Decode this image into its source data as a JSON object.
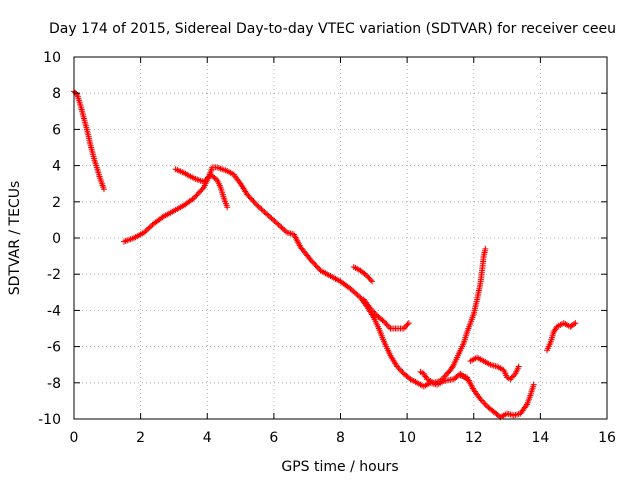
{
  "chart_data": {
    "type": "scatter",
    "title": "Day 174 of 2015, Sidereal Day-to-day VTEC variation (SDTVAR) for receiver ceeu",
    "xlabel": "GPS time / hours",
    "ylabel": "SDTVAR / TECUs",
    "xlim": [
      0,
      16
    ],
    "ylim": [
      -10,
      10
    ],
    "xticks": [
      0,
      2,
      4,
      6,
      8,
      10,
      12,
      14,
      16
    ],
    "yticks": [
      -10,
      -8,
      -6,
      -4,
      -2,
      0,
      2,
      4,
      6,
      8,
      10
    ],
    "grid": true,
    "marker": "plus",
    "series": [
      {
        "name": "SDTVAR",
        "color": "#ff0000",
        "segments": [
          [
            [
              0.0,
              8.1
            ],
            [
              0.1,
              7.9
            ],
            [
              0.2,
              7.3
            ],
            [
              0.3,
              6.6
            ],
            [
              0.4,
              5.9
            ],
            [
              0.5,
              5.1
            ],
            [
              0.6,
              4.4
            ],
            [
              0.7,
              3.8
            ],
            [
              0.8,
              3.2
            ],
            [
              0.9,
              2.7
            ]
          ],
          [
            [
              1.5,
              -0.2
            ],
            [
              1.8,
              0.0
            ],
            [
              2.1,
              0.3
            ],
            [
              2.4,
              0.8
            ],
            [
              2.7,
              1.2
            ],
            [
              3.0,
              1.5
            ],
            [
              3.3,
              1.8
            ],
            [
              3.6,
              2.2
            ],
            [
              3.9,
              2.8
            ],
            [
              4.05,
              3.4
            ],
            [
              4.15,
              3.9
            ],
            [
              4.3,
              3.9
            ],
            [
              4.45,
              3.8
            ],
            [
              4.6,
              3.7
            ],
            [
              4.8,
              3.5
            ],
            [
              5.0,
              3.0
            ],
            [
              5.2,
              2.4
            ],
            [
              5.5,
              1.8
            ],
            [
              5.8,
              1.3
            ],
            [
              6.1,
              0.8
            ],
            [
              6.4,
              0.3
            ],
            [
              6.6,
              0.2
            ],
            [
              6.8,
              -0.5
            ],
            [
              7.1,
              -1.2
            ],
            [
              7.4,
              -1.8
            ],
            [
              7.7,
              -2.1
            ],
            [
              8.0,
              -2.4
            ],
            [
              8.3,
              -2.8
            ],
            [
              8.6,
              -3.3
            ],
            [
              8.8,
              -3.8
            ],
            [
              9.0,
              -4.4
            ],
            [
              9.15,
              -5.0
            ],
            [
              9.3,
              -5.7
            ],
            [
              9.5,
              -6.5
            ],
            [
              9.7,
              -7.1
            ],
            [
              9.9,
              -7.5
            ],
            [
              10.1,
              -7.8
            ],
            [
              10.3,
              -8.0
            ],
            [
              10.5,
              -8.2
            ],
            [
              10.7,
              -8.0
            ],
            [
              10.9,
              -8.1
            ],
            [
              11.1,
              -7.9
            ],
            [
              11.4,
              -7.8
            ],
            [
              11.6,
              -7.5
            ],
            [
              11.8,
              -7.8
            ]
          ],
          [
            [
              3.05,
              3.8
            ],
            [
              3.3,
              3.6
            ],
            [
              3.6,
              3.3
            ],
            [
              3.9,
              3.1
            ],
            [
              4.1,
              3.5
            ],
            [
              4.3,
              3.2
            ],
            [
              4.4,
              2.8
            ],
            [
              4.5,
              2.2
            ],
            [
              4.6,
              1.7
            ]
          ],
          [
            [
              8.4,
              -1.6
            ],
            [
              8.6,
              -1.8
            ],
            [
              8.8,
              -2.1
            ],
            [
              8.95,
              -2.4
            ]
          ],
          [
            [
              8.7,
              -3.4
            ],
            [
              8.9,
              -3.9
            ],
            [
              9.1,
              -4.3
            ],
            [
              9.3,
              -4.6
            ],
            [
              9.5,
              -5.0
            ],
            [
              9.7,
              -5.0
            ],
            [
              9.9,
              -5.0
            ],
            [
              10.05,
              -4.7
            ]
          ],
          [
            [
              10.4,
              -7.4
            ],
            [
              10.5,
              -7.5
            ],
            [
              10.6,
              -7.8
            ],
            [
              10.8,
              -8.0
            ],
            [
              11.0,
              -7.9
            ],
            [
              11.2,
              -7.5
            ],
            [
              11.3,
              -7.3
            ],
            [
              11.4,
              -7.0
            ],
            [
              11.5,
              -6.6
            ],
            [
              11.6,
              -6.2
            ],
            [
              11.7,
              -5.8
            ],
            [
              11.8,
              -5.2
            ],
            [
              11.9,
              -4.7
            ],
            [
              12.0,
              -4.2
            ],
            [
              12.1,
              -3.4
            ],
            [
              12.2,
              -2.5
            ],
            [
              12.25,
              -1.8
            ],
            [
              12.3,
              -1.0
            ],
            [
              12.35,
              -0.6
            ]
          ],
          [
            [
              11.9,
              -6.8
            ],
            [
              12.1,
              -6.6
            ],
            [
              12.3,
              -6.8
            ],
            [
              12.5,
              -7.0
            ],
            [
              12.7,
              -7.1
            ],
            [
              12.9,
              -7.3
            ],
            [
              13.0,
              -7.7
            ],
            [
              13.1,
              -7.8
            ],
            [
              13.25,
              -7.5
            ],
            [
              13.35,
              -7.1
            ]
          ],
          [
            [
              11.6,
              -7.6
            ],
            [
              11.8,
              -7.7
            ],
            [
              12.0,
              -8.4
            ],
            [
              12.2,
              -8.9
            ],
            [
              12.4,
              -9.3
            ],
            [
              12.6,
              -9.6
            ],
            [
              12.8,
              -9.9
            ],
            [
              13.0,
              -9.7
            ],
            [
              13.2,
              -9.8
            ],
            [
              13.4,
              -9.7
            ],
            [
              13.6,
              -9.2
            ],
            [
              13.7,
              -8.7
            ],
            [
              13.8,
              -8.1
            ]
          ],
          [
            [
              14.2,
              -6.2
            ],
            [
              14.3,
              -5.8
            ],
            [
              14.4,
              -5.2
            ],
            [
              14.5,
              -4.9
            ],
            [
              14.7,
              -4.7
            ],
            [
              14.9,
              -4.9
            ],
            [
              15.05,
              -4.7
            ]
          ]
        ]
      }
    ]
  }
}
